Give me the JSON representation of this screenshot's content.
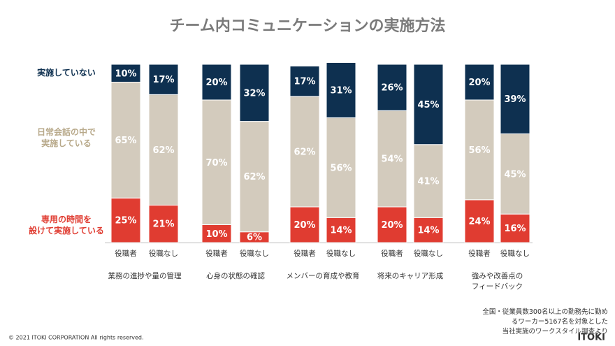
{
  "chart_data": {
    "type": "stacked_bar",
    "title": "チーム内コミュニケーションの実施方法",
    "categories": [
      "役職者",
      "役職なし",
      "役職者",
      "役職なし",
      "役職者",
      "役職なし",
      "役職者",
      "役職なし",
      "役職者",
      "役職なし"
    ],
    "groups": [
      "業務の進捗や量の管理",
      "心身の状態の確認",
      "メンバーの育成や教育",
      "将来のキャリア形成",
      "強みや改善点の\nフィードバック"
    ],
    "ylim": [
      0,
      100
    ],
    "series": [
      {
        "name": "専用の時間を\n設けて実施している",
        "color": "#e03c31",
        "values": [
          25,
          21,
          10,
          6,
          20,
          14,
          20,
          14,
          24,
          16
        ],
        "value_labels": [
          "25%",
          "21%",
          "10%",
          "6%",
          "20%",
          "14%",
          "20%",
          "14%",
          "24%",
          "16%"
        ]
      },
      {
        "name": "日常会話の中で\n実施している",
        "color": "#d3cbbd",
        "values": [
          65,
          62,
          70,
          62,
          62,
          56,
          54,
          41,
          56,
          45
        ],
        "value_labels": [
          "65%",
          "62%",
          "70%",
          "62%",
          "62%",
          "56%",
          "54%",
          "41%",
          "56%",
          "45%"
        ]
      },
      {
        "name": "実施していない",
        "color": "#0e3050",
        "values": [
          10,
          17,
          20,
          32,
          17,
          31,
          26,
          45,
          20,
          39
        ],
        "value_labels": [
          "10%",
          "17%",
          "20%",
          "32%",
          "17%",
          "31%",
          "26%",
          "45%",
          "20%",
          "39%"
        ]
      }
    ]
  },
  "footnote": "全国・従業員数300名以上の勤務先に勤めるワーカー5167名を対象とした\n当社実施のワークスタイル調査より",
  "copyright": "© 2021 ITOKI CORPORATION  All rights reserved.",
  "logo": "ITOKI"
}
